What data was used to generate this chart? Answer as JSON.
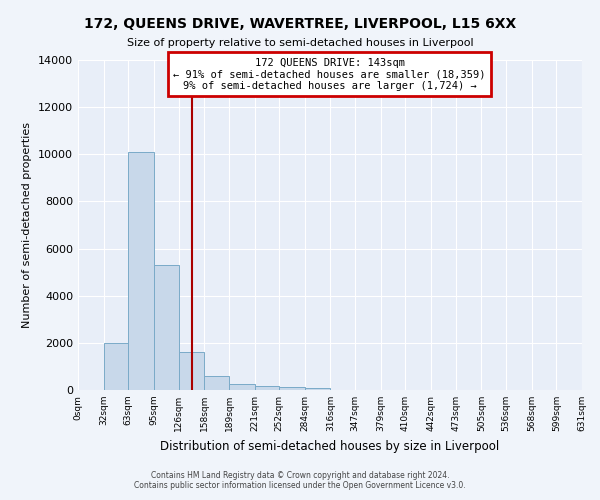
{
  "title": "172, QUEENS DRIVE, WAVERTREE, LIVERPOOL, L15 6XX",
  "subtitle": "Size of property relative to semi-detached houses in Liverpool",
  "xlabel": "Distribution of semi-detached houses by size in Liverpool",
  "ylabel": "Number of semi-detached properties",
  "bar_color": "#c8d8ea",
  "bar_edge_color": "#7aaac8",
  "background_color": "#e8eef8",
  "grid_color": "#ffffff",
  "vline_color": "#aa0000",
  "vline_x": 143,
  "annotation_box_color": "#cc0000",
  "annotation_title": "172 QUEENS DRIVE: 143sqm",
  "annotation_line1": "← 91% of semi-detached houses are smaller (18,359)",
  "annotation_line2": "9% of semi-detached houses are larger (1,724) →",
  "bin_edges": [
    0,
    32,
    63,
    95,
    126,
    158,
    189,
    221,
    252,
    284,
    316,
    347,
    379,
    410,
    442,
    473,
    505,
    536,
    568,
    599,
    631
  ],
  "bin_counts": [
    0,
    2000,
    10100,
    5300,
    1600,
    600,
    270,
    170,
    110,
    100,
    0,
    0,
    0,
    0,
    0,
    0,
    0,
    0,
    0,
    0
  ],
  "ylim": [
    0,
    14000
  ],
  "yticks": [
    0,
    2000,
    4000,
    6000,
    8000,
    10000,
    12000,
    14000
  ],
  "xtick_labels": [
    "0sqm",
    "32sqm",
    "63sqm",
    "95sqm",
    "126sqm",
    "158sqm",
    "189sqm",
    "221sqm",
    "252sqm",
    "284sqm",
    "316sqm",
    "347sqm",
    "379sqm",
    "410sqm",
    "442sqm",
    "473sqm",
    "505sqm",
    "536sqm",
    "568sqm",
    "599sqm",
    "631sqm"
  ],
  "footer_line1": "Contains HM Land Registry data © Crown copyright and database right 2024.",
  "footer_line2": "Contains public sector information licensed under the Open Government Licence v3.0."
}
